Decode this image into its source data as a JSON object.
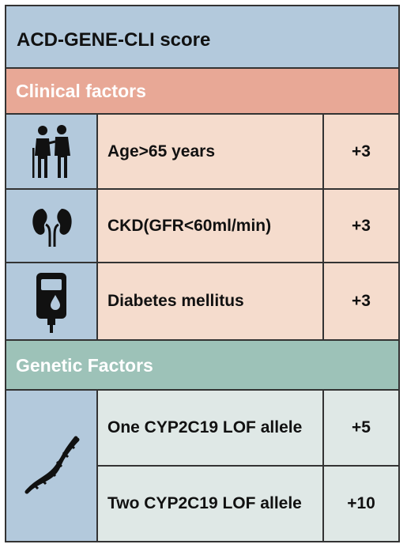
{
  "title": "ACD-GENE-CLI score",
  "sections": {
    "clinical": {
      "label": "Clinical factors",
      "items": [
        {
          "icon": "elderly-couple-icon",
          "label": "Age>65 years",
          "score": "+3"
        },
        {
          "icon": "kidney-icon",
          "label": "CKD(GFR<60ml/min)",
          "score": "+3"
        },
        {
          "icon": "glucometer-icon",
          "label": "Diabetes mellitus",
          "score": "+3"
        }
      ]
    },
    "genetic": {
      "label": "Genetic Factors",
      "icon": "dna-icon",
      "items": [
        {
          "label": "One CYP2C19 LOF allele",
          "score": "+5"
        },
        {
          "label": "Two CYP2C19 LOF allele",
          "score": "+10"
        }
      ]
    }
  },
  "colors": {
    "title_bg": "#b3c9dc",
    "clinical_header": "#e8a896",
    "clinical_cell": "#f5dccd",
    "genetic_header": "#9dc2b8",
    "genetic_cell": "#dfe8e6"
  }
}
